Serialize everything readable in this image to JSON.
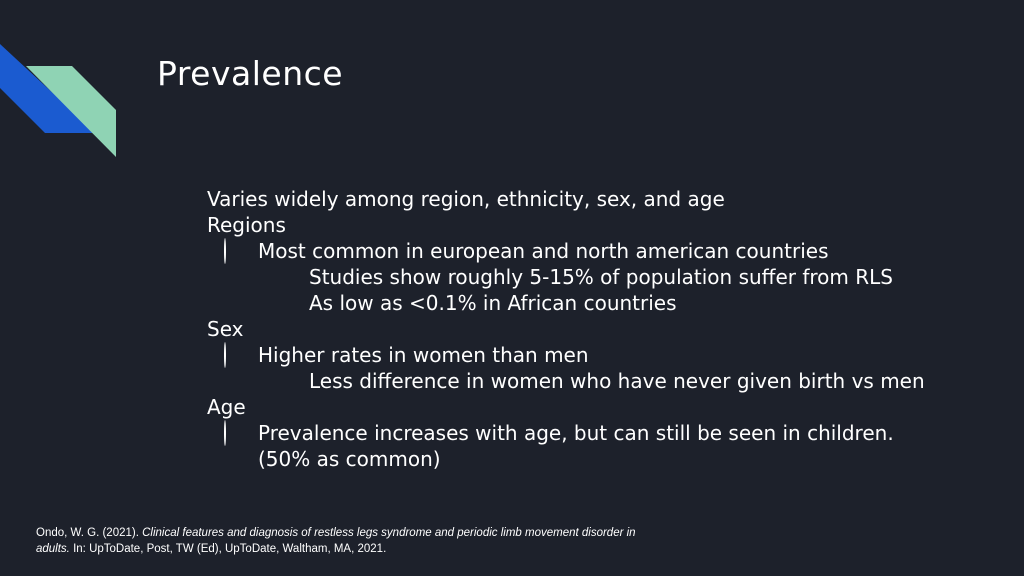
{
  "slide": {
    "title": "Prevalence",
    "bullets": [
      {
        "level": 1,
        "text": "Varies widely among region, ethnicity, sex, and age"
      },
      {
        "level": 1,
        "text": "Regions"
      },
      {
        "level": 2,
        "text": "Most common in european and north american countries"
      },
      {
        "level": 3,
        "text": "Studies show roughly 5-15% of population suffer from RLS"
      },
      {
        "level": 3,
        "text": "As low as <0.1% in African countries"
      },
      {
        "level": 1,
        "text": "Sex"
      },
      {
        "level": 2,
        "text": "Higher rates in women than men"
      },
      {
        "level": 3,
        "text": "Less difference in women who have never given birth vs men"
      },
      {
        "level": 1,
        "text": "Age"
      },
      {
        "level": 2,
        "text": "Prevalence increases with age, but can still be seen in children."
      },
      {
        "level": 0,
        "text": "(50% as common)"
      }
    ],
    "citation": {
      "authors": "Ondo, W. G. (2021). ",
      "title_italic": "Clinical features and diagnosis of restless legs syndrome and periodic limb movement disorder in adults.",
      "rest": " In: UpToDate, Post, TW (Ed), UpToDate, Waltham, MA, 2021."
    }
  },
  "colors": {
    "background": "#1d212b",
    "accent_blue": "#1b5bd0",
    "accent_teal": "#8fd3b4",
    "text": "#ffffff"
  }
}
